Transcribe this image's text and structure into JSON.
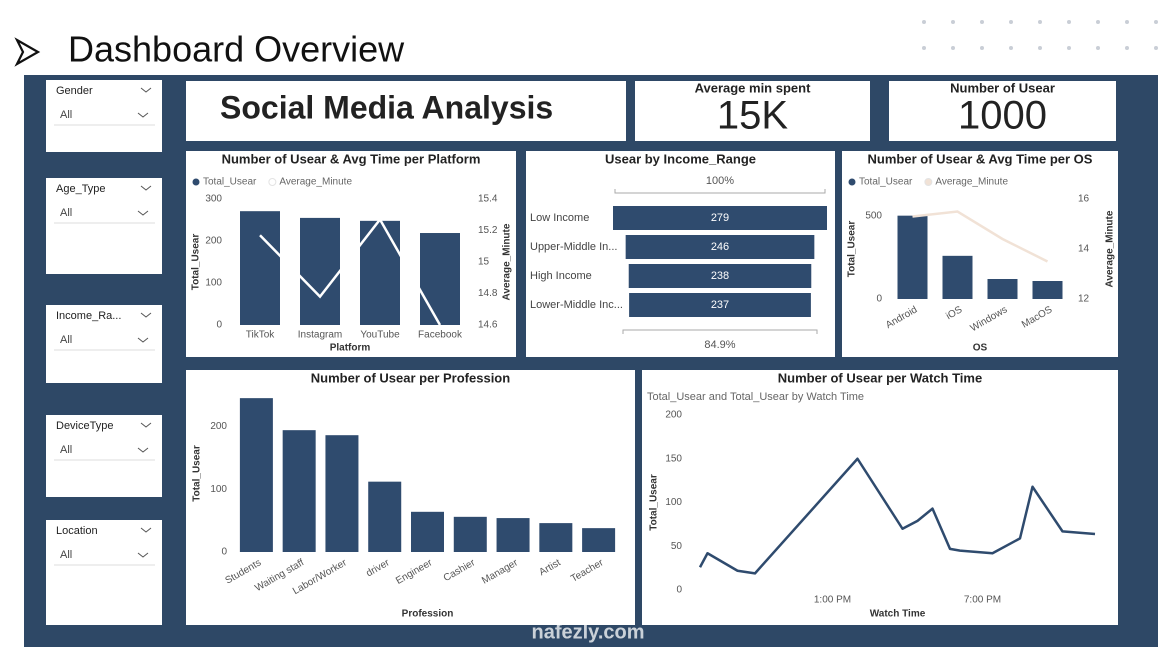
{
  "header": {
    "title": "Dashboard Overview"
  },
  "report_title": "Social Media Analysis",
  "filters": [
    {
      "label": "Gender",
      "value": "All"
    },
    {
      "label": "Age_Type",
      "value": "All"
    },
    {
      "label": "Income_Ra...",
      "value": "All"
    },
    {
      "label": "DeviceType",
      "value": "All"
    },
    {
      "label": "Location",
      "value": "All"
    }
  ],
  "kpis": [
    {
      "label": "Average min spent",
      "value": "15K"
    },
    {
      "label": "Number of Usear",
      "value": "1000"
    }
  ],
  "watermark": "nafezly.com",
  "chart_data": [
    {
      "type": "combo",
      "title": "Number of Usear & Avg Time per Platform",
      "x_label": "Platform",
      "y_label": "Total_Usear",
      "y2_label": "Average_Minute",
      "categories": [
        "TikTok",
        "Instagram",
        "YouTube",
        "Facebook"
      ],
      "series": [
        {
          "name": "Total_Usear",
          "color": "#2f4b6e",
          "values": [
            271,
            255,
            248,
            219
          ]
        },
        {
          "name": "Average_Minute",
          "color": "#ffffff",
          "axis": "y2",
          "values": [
            15.17,
            14.78,
            15.27,
            14.6
          ]
        }
      ],
      "ylim": [
        0,
        300
      ],
      "yticks": [
        0,
        100,
        200,
        300
      ],
      "y2lim": [
        14.6,
        15.4
      ],
      "y2ticks": [
        14.6,
        14.8,
        15.0,
        15.2,
        15.4
      ]
    },
    {
      "type": "funnel",
      "title": "Usear by Income_Range",
      "categories": [
        "Low Income",
        "Upper-Middle In...",
        "High Income",
        "Lower-Middle Inc..."
      ],
      "values": [
        279,
        246,
        238,
        237
      ],
      "color": "#2f4b6e",
      "percent_labels": [
        "100%",
        "84.9%"
      ]
    },
    {
      "type": "combo",
      "title": "Number of Usear & Avg Time per OS",
      "x_label": "OS",
      "y_label": "Total_Usear",
      "y2_label": "Average_Minute",
      "categories": [
        "Android",
        "iOS",
        "Windows",
        "MacOS"
      ],
      "series": [
        {
          "name": "Total_Usear",
          "color": "#2f4b6e",
          "values": [
            500,
            259,
            120,
            108
          ]
        },
        {
          "name": "Average_Minute",
          "color": "#f1e2d6",
          "axis": "y2",
          "values": [
            15.3,
            15.5,
            14.4,
            13.5
          ]
        }
      ],
      "ylim": [
        0,
        600
      ],
      "yticks": [
        0,
        500
      ],
      "y2lim": [
        12,
        16
      ],
      "y2ticks": [
        12,
        14,
        16
      ]
    },
    {
      "type": "bar",
      "title": "Number of Usear per Profession",
      "x_label": "Profession",
      "y_label": "Total_Usear",
      "categories": [
        "Students",
        "Waiting staff",
        "Labor/Worker",
        "driver",
        "Engineer",
        "Cashier",
        "Manager",
        "Artist",
        "Teacher"
      ],
      "series": [
        {
          "name": "Total_Usear",
          "color": "#2f4b6e",
          "values": [
            245,
            194,
            186,
            112,
            64,
            56,
            54,
            46,
            38
          ]
        }
      ],
      "ylim": [
        0,
        250
      ],
      "yticks": [
        0,
        100,
        200
      ]
    },
    {
      "type": "line",
      "title": "Number of Usear per Watch Time",
      "subtitle": "Total_Usear and Total_Usear by Watch Time",
      "x_label": "Watch Time",
      "y_label": "Total_Usear",
      "x": [
        7.7,
        8.0,
        9.2,
        9.9,
        14.0,
        15.8,
        16.4,
        17.0,
        17.7,
        18.1,
        19.4,
        20.5,
        21.0,
        22.2,
        23.5
      ],
      "series": [
        {
          "name": "Total_Usear",
          "color": "#2f4b6e",
          "values": [
            26,
            42,
            22,
            19,
            150,
            70,
            79,
            93,
            47,
            45,
            42,
            59,
            118,
            67,
            64
          ]
        }
      ],
      "xlim": [
        7.3,
        23.9
      ],
      "xticks": [
        {
          "value": 13,
          "label": "1:00 PM"
        },
        {
          "value": 19,
          "label": "7:00 PM"
        }
      ],
      "ylim": [
        0,
        200
      ],
      "yticks": [
        0,
        50,
        100,
        150,
        200
      ]
    }
  ]
}
